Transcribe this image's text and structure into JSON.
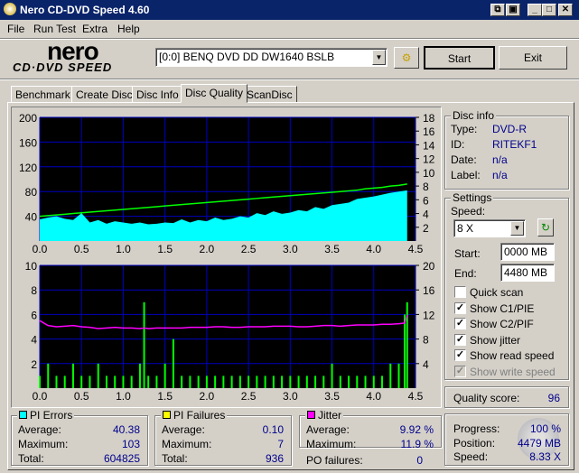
{
  "window": {
    "title": "Nero CD-DVD Speed 4.60"
  },
  "menu": [
    "File",
    "Run Test",
    "Extra",
    "Help"
  ],
  "logo": {
    "line1": "nero",
    "line2": "CD·DVD SPEED"
  },
  "toolbar": {
    "drive": "[0:0]  BENQ DVD DD DW1640 BSLB",
    "start": "Start",
    "exit": "Exit"
  },
  "tabs": [
    "Benchmark",
    "Create Disc",
    "Disc Info",
    "Disc Quality",
    "ScanDisc"
  ],
  "active_tab": "Disc Quality",
  "disc_info": {
    "title": "Disc info",
    "rows": [
      {
        "label": "Type:",
        "value": "DVD-R"
      },
      {
        "label": "ID:",
        "value": "RITEKF1"
      },
      {
        "label": "Date:",
        "value": "n/a"
      },
      {
        "label": "Label:",
        "value": "n/a"
      }
    ]
  },
  "settings": {
    "title": "Settings",
    "speed_label": "Speed:",
    "speed": "8 X",
    "start_label": "Start:",
    "start": "0000 MB",
    "end_label": "End:",
    "end": "4480 MB",
    "checks": [
      {
        "label": "Quick scan",
        "checked": false,
        "enabled": true
      },
      {
        "label": "Show C1/PIE",
        "checked": true,
        "enabled": true
      },
      {
        "label": "Show C2/PIF",
        "checked": true,
        "enabled": true
      },
      {
        "label": "Show jitter",
        "checked": true,
        "enabled": true
      },
      {
        "label": "Show read speed",
        "checked": true,
        "enabled": true
      },
      {
        "label": "Show write speed",
        "checked": true,
        "enabled": false
      }
    ]
  },
  "quality": {
    "label": "Quality score:",
    "value": "96"
  },
  "pi_errors": {
    "title": "PI Errors",
    "color": "#00ffff",
    "rows": [
      {
        "label": "Average:",
        "value": "40.38"
      },
      {
        "label": "Maximum:",
        "value": "103"
      },
      {
        "label": "Total:",
        "value": "604825"
      }
    ]
  },
  "pi_failures": {
    "title": "PI Failures",
    "color": "#ffff00",
    "rows": [
      {
        "label": "Average:",
        "value": "0.10"
      },
      {
        "label": "Maximum:",
        "value": "7"
      },
      {
        "label": "Total:",
        "value": "936"
      }
    ]
  },
  "jitter": {
    "title": "Jitter",
    "color": "#ff00ff",
    "rows": [
      {
        "label": "Average:",
        "value": "9.92 %"
      },
      {
        "label": "Maximum:",
        "value": "11.9 %"
      }
    ],
    "po_label": "PO failures:",
    "po_value": "0"
  },
  "progress": {
    "rows": [
      {
        "label": "Progress:",
        "value": "100 %"
      },
      {
        "label": "Position:",
        "value": "4479 MB"
      },
      {
        "label": "Speed:",
        "value": "8.33 X"
      }
    ]
  },
  "chart_data": [
    {
      "type": "area",
      "xlim": [
        0,
        4.5
      ],
      "ylim": [
        0,
        200
      ],
      "y2lim": [
        0,
        18
      ],
      "xticks": [
        "0.0",
        "0.5",
        "1.0",
        "1.5",
        "2.0",
        "2.5",
        "3.0",
        "3.5",
        "4.0",
        "4.5"
      ],
      "yticks": [
        "40",
        "80",
        "120",
        "160",
        "200"
      ],
      "y2ticks": [
        "2",
        "4",
        "6",
        "8",
        "10",
        "12",
        "14",
        "16",
        "18"
      ],
      "x": [
        0,
        0.1,
        0.2,
        0.3,
        0.4,
        0.5,
        0.6,
        0.7,
        0.8,
        0.9,
        1.0,
        1.1,
        1.2,
        1.3,
        1.4,
        1.5,
        1.6,
        1.7,
        1.8,
        1.9,
        2.0,
        2.1,
        2.2,
        2.3,
        2.4,
        2.5,
        2.6,
        2.7,
        2.8,
        2.9,
        3.0,
        3.1,
        3.2,
        3.3,
        3.4,
        3.5,
        3.6,
        3.7,
        3.8,
        3.9,
        4.0,
        4.1,
        4.2,
        4.3,
        4.4
      ],
      "series": [
        {
          "name": "PI Errors",
          "color": "#00ffff",
          "values": [
            35,
            38,
            40,
            36,
            34,
            45,
            30,
            34,
            28,
            32,
            30,
            28,
            30,
            27,
            28,
            30,
            29,
            35,
            30,
            34,
            32,
            38,
            34,
            36,
            40,
            38,
            45,
            42,
            48,
            44,
            46,
            50,
            48,
            55,
            52,
            58,
            60,
            62,
            68,
            70,
            72,
            75,
            78,
            80,
            82
          ]
        },
        {
          "name": "Read speed",
          "color": "#00ff00",
          "axis": "right",
          "values": [
            3.6,
            3.7,
            3.8,
            3.9,
            4.0,
            4.1,
            4.2,
            4.3,
            4.4,
            4.5,
            4.6,
            4.7,
            4.8,
            4.9,
            5.0,
            5.1,
            5.2,
            5.3,
            5.4,
            5.5,
            5.6,
            5.7,
            5.8,
            5.9,
            6.0,
            6.1,
            6.2,
            6.3,
            6.4,
            6.5,
            6.6,
            6.7,
            6.8,
            6.9,
            7.0,
            7.1,
            7.2,
            7.3,
            7.4,
            7.6,
            7.7,
            7.8,
            8.0,
            8.1,
            8.3
          ]
        }
      ]
    },
    {
      "type": "bar",
      "xlim": [
        0,
        4.5
      ],
      "ylim": [
        0,
        10
      ],
      "y2lim": [
        0,
        20
      ],
      "xticks": [
        "0.0",
        "0.5",
        "1.0",
        "1.5",
        "2.0",
        "2.5",
        "3.0",
        "3.5",
        "4.0",
        "4.5"
      ],
      "yticks": [
        "2",
        "4",
        "6",
        "8",
        "10"
      ],
      "y2ticks": [
        "4",
        "8",
        "12",
        "16",
        "20"
      ],
      "x": [
        0,
        0.1,
        0.2,
        0.3,
        0.4,
        0.5,
        0.6,
        0.7,
        0.8,
        0.9,
        1.0,
        1.1,
        1.2,
        1.25,
        1.3,
        1.4,
        1.5,
        1.6,
        1.7,
        1.8,
        1.9,
        2.0,
        2.1,
        2.2,
        2.3,
        2.4,
        2.5,
        2.6,
        2.7,
        2.8,
        2.9,
        3.0,
        3.1,
        3.2,
        3.3,
        3.4,
        3.5,
        3.6,
        3.7,
        3.8,
        3.9,
        4.0,
        4.1,
        4.2,
        4.3,
        4.37,
        4.4
      ],
      "series": [
        {
          "name": "PI Failures",
          "color": "#00ff00",
          "values": [
            1,
            2,
            1,
            1,
            2,
            1,
            1,
            2,
            1,
            1,
            1,
            1,
            2,
            7,
            1,
            1,
            2,
            4,
            1,
            1,
            1,
            1,
            1,
            1,
            1,
            1,
            1,
            1,
            1,
            1,
            1,
            1,
            1,
            1,
            1,
            1,
            2,
            1,
            1,
            1,
            1,
            1,
            1,
            2,
            2,
            6,
            7
          ]
        },
        {
          "name": "Jitter",
          "color": "#ff00ff",
          "axis": "right",
          "values": [
            11,
            10.2,
            10.0,
            10.1,
            10.2,
            10.0,
            9.9,
            9.7,
            9.8,
            9.9,
            9.8,
            9.8,
            9.7,
            9.8,
            9.7,
            9.8,
            9.8,
            9.8,
            9.8,
            9.9,
            9.9,
            9.9,
            10.0,
            10.0,
            9.9,
            9.9,
            10.0,
            10.0,
            10.0,
            10.1,
            10.1,
            10.1,
            10.0,
            10.0,
            10.1,
            10.2,
            10.2,
            10.1,
            10.2,
            10.3,
            10.3,
            10.3,
            10.4,
            10.4,
            10.5,
            10.6,
            11.9
          ]
        }
      ]
    }
  ]
}
